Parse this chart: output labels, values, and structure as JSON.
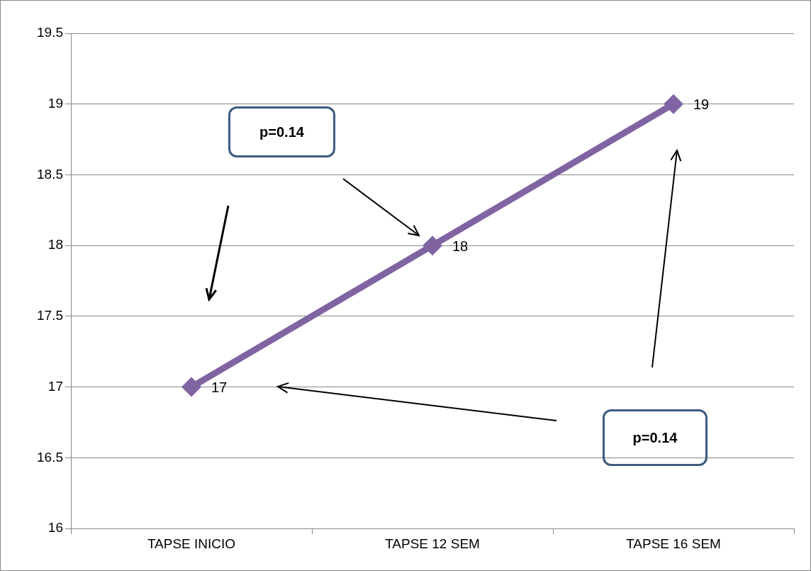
{
  "chart_data": {
    "type": "line",
    "categories": [
      "TAPSE INICIO",
      "TAPSE 12 SEM",
      "TAPSE 16 SEM"
    ],
    "series": [
      {
        "color": "#8064a2",
        "values": [
          17,
          18,
          19
        ]
      }
    ],
    "ylim": [
      16,
      19.5
    ],
    "yticks": [
      16,
      16.5,
      17,
      17.5,
      18,
      18.5,
      19,
      19.5
    ],
    "grid": "y",
    "legend": false,
    "marker": "diamond",
    "line_style": "solid",
    "data_labels": true,
    "annotations": [
      "p=0.14",
      "p=0.14"
    ]
  }
}
